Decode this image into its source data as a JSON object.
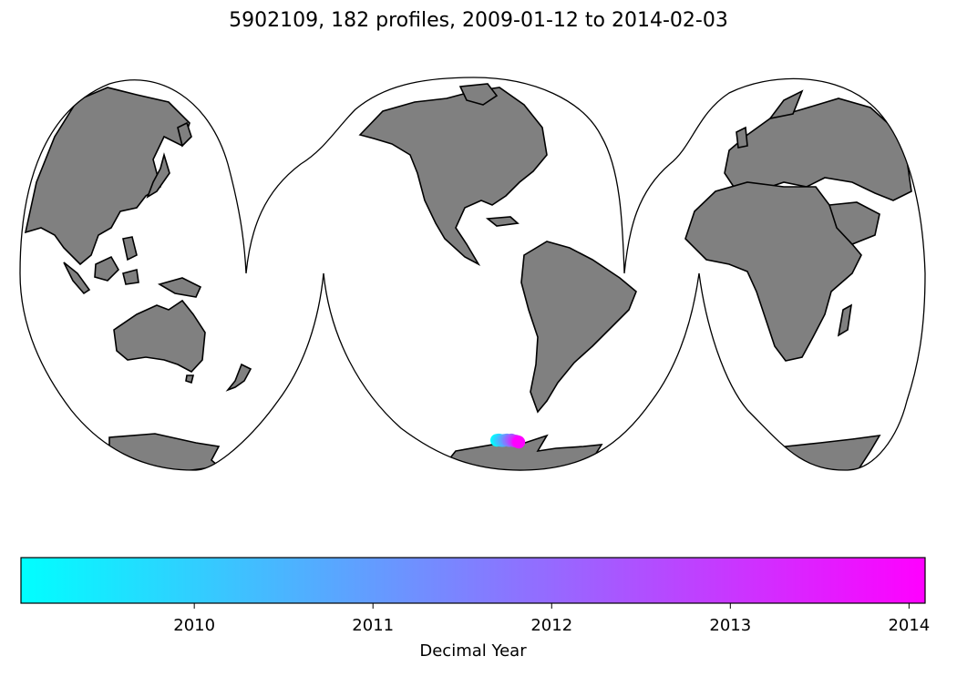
{
  "title": "5902109, 182 profiles, 2009-01-12 to 2014-02-03",
  "map": {
    "projection": "goode-homolosine-interrupted",
    "land_color": "#808080",
    "coast_color": "#000000",
    "ocean_color": "#ffffff"
  },
  "track_points": [
    {
      "lon": -67.4,
      "lat": -62.1,
      "year": 2009.1
    },
    {
      "lon": -66.6,
      "lat": -62.0,
      "year": 2009.5
    },
    {
      "lon": -65.9,
      "lat": -62.1,
      "year": 2009.9
    },
    {
      "lon": -65.0,
      "lat": -62.2,
      "year": 2010.3
    },
    {
      "lon": -64.1,
      "lat": -62.1,
      "year": 2010.7
    },
    {
      "lon": -63.1,
      "lat": -62.0,
      "year": 2011.1
    },
    {
      "lon": -62.2,
      "lat": -62.2,
      "year": 2011.6
    },
    {
      "lon": -61.2,
      "lat": -62.0,
      "year": 2012.1
    },
    {
      "lon": -60.3,
      "lat": -62.3,
      "year": 2012.6
    },
    {
      "lon": -59.4,
      "lat": -62.4,
      "year": 2013.1
    },
    {
      "lon": -58.6,
      "lat": -62.6,
      "year": 2013.6
    },
    {
      "lon": -58.1,
      "lat": -62.8,
      "year": 2014.09
    }
  ],
  "colorbar": {
    "label": "Decimal Year",
    "vmin": 2009.03,
    "vmax": 2014.09,
    "ticks": [
      2010,
      2011,
      2012,
      2013,
      2014
    ],
    "tick_labels": [
      "2010",
      "2011",
      "2012",
      "2013",
      "2014"
    ],
    "color_start": "#00ffff",
    "color_end": "#ff00ff"
  }
}
